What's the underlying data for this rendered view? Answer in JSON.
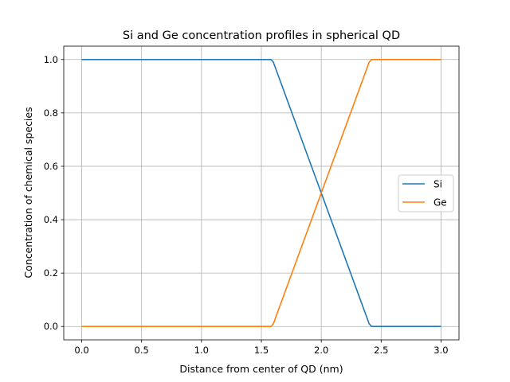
{
  "chart_data": {
    "type": "line",
    "title": "Si and Ge concentration profiles in spherical QD",
    "xlabel": "Distance from center of QD (nm)",
    "ylabel": "Concentration of chemical species",
    "xlim": [
      -0.15,
      3.15
    ],
    "ylim": [
      -0.05,
      1.05
    ],
    "xticks": [
      "0.0",
      "0.5",
      "1.0",
      "1.5",
      "2.0",
      "2.5",
      "3.0"
    ],
    "yticks": [
      "0.0",
      "0.2",
      "0.4",
      "0.6",
      "0.8",
      "1.0"
    ],
    "grid": true,
    "legend": "center-right",
    "series": [
      {
        "name": "Si",
        "color": "#1f77b4",
        "x": [
          0,
          1.58,
          1.6,
          2.0,
          2.4,
          2.42,
          3.0
        ],
        "y": [
          1,
          1,
          0.99,
          0.5,
          0.01,
          0,
          0
        ]
      },
      {
        "name": "Ge",
        "color": "#ff7f0e",
        "x": [
          0,
          1.58,
          1.6,
          2.0,
          2.4,
          2.42,
          3.0
        ],
        "y": [
          0,
          0,
          0.01,
          0.5,
          0.99,
          1,
          1
        ]
      }
    ]
  }
}
